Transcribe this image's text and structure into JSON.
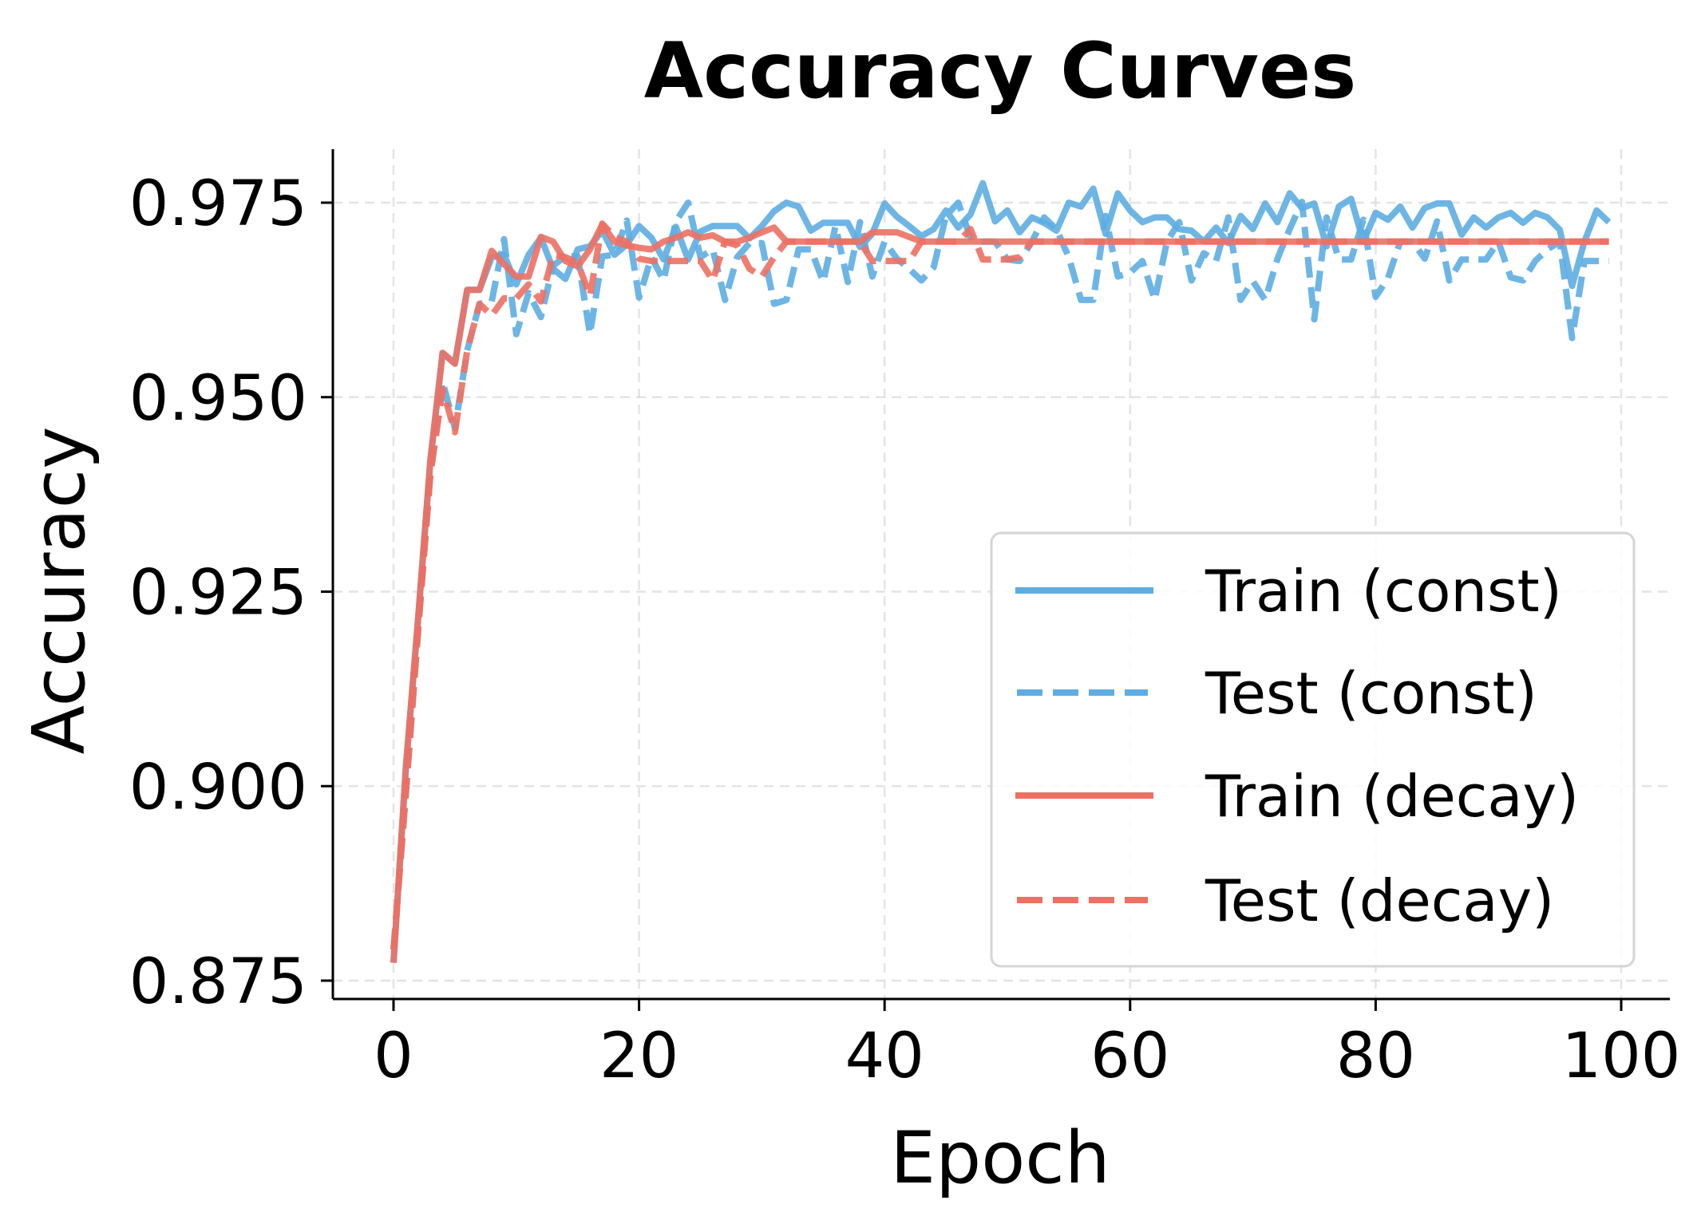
{
  "chart_data": {
    "type": "line",
    "title": "Accuracy Curves",
    "xlabel": "Epoch",
    "ylabel": "Accuracy",
    "xlim": [
      -5,
      104
    ],
    "ylim": [
      0.8705,
      0.982
    ],
    "xticks": [
      0,
      20,
      40,
      60,
      80,
      100
    ],
    "xtick_labels": [
      "0",
      "20",
      "40",
      "60",
      "80",
      "100"
    ],
    "yticks": [
      0.875,
      0.9,
      0.925,
      0.95,
      0.975
    ],
    "ytick_labels": [
      "0.875",
      "0.900",
      "0.925",
      "0.950",
      "0.975"
    ],
    "grid": true,
    "legend_position": "lower right",
    "x": [
      0,
      1,
      2,
      3,
      4,
      5,
      6,
      7,
      8,
      9,
      10,
      11,
      12,
      13,
      14,
      15,
      16,
      17,
      18,
      19,
      20,
      21,
      22,
      23,
      24,
      25,
      26,
      27,
      28,
      29,
      30,
      31,
      32,
      33,
      34,
      35,
      36,
      37,
      38,
      39,
      40,
      41,
      42,
      43,
      44,
      45,
      46,
      47,
      48,
      49,
      50,
      51,
      52,
      53,
      54,
      55,
      56,
      57,
      58,
      59,
      60,
      61,
      62,
      63,
      64,
      65,
      66,
      67,
      68,
      69,
      70,
      71,
      72,
      73,
      74,
      75,
      76,
      77,
      78,
      79,
      80,
      81,
      82,
      83,
      84,
      85,
      86,
      87,
      88,
      89,
      90,
      91,
      92,
      93,
      94,
      95,
      96,
      97,
      98,
      99
    ],
    "series": [
      {
        "name": "Train (const)",
        "color": "#5DADE2",
        "style": "solid",
        "values": [
          0.8773,
          0.9023,
          0.9215,
          0.9418,
          0.9557,
          0.9543,
          0.9638,
          0.9638,
          0.968,
          0.9683,
          0.9645,
          0.9683,
          0.9705,
          0.9665,
          0.9652,
          0.969,
          0.9694,
          0.9714,
          0.9683,
          0.9696,
          0.972,
          0.9705,
          0.9677,
          0.9719,
          0.9677,
          0.9713,
          0.972,
          0.972,
          0.972,
          0.9704,
          0.972,
          0.9739,
          0.975,
          0.9745,
          0.9714,
          0.9724,
          0.9724,
          0.9724,
          0.9693,
          0.971,
          0.9749,
          0.9732,
          0.972,
          0.9707,
          0.9716,
          0.974,
          0.9718,
          0.9735,
          0.9775,
          0.9726,
          0.974,
          0.9712,
          0.9731,
          0.9724,
          0.9714,
          0.975,
          0.9745,
          0.9768,
          0.971,
          0.9762,
          0.974,
          0.9725,
          0.9731,
          0.9731,
          0.9716,
          0.9714,
          0.97,
          0.9718,
          0.9698,
          0.9733,
          0.9716,
          0.9749,
          0.9725,
          0.9762,
          0.9743,
          0.9749,
          0.9694,
          0.9745,
          0.9755,
          0.97,
          0.9737,
          0.9728,
          0.9745,
          0.9718,
          0.9743,
          0.9749,
          0.9749,
          0.9709,
          0.9731,
          0.9718,
          0.9731,
          0.9737,
          0.9724,
          0.9737,
          0.9731,
          0.9715,
          0.9643,
          0.97,
          0.974,
          0.9725
        ]
      },
      {
        "name": "Test (const)",
        "color": "#5DADE2",
        "style": "dashed",
        "values": [
          0.879,
          0.899,
          0.92,
          0.94,
          0.952,
          0.946,
          0.956,
          0.962,
          0.9623,
          0.9703,
          0.9581,
          0.9634,
          0.9603,
          0.9669,
          0.9681,
          0.9681,
          0.9581,
          0.9681,
          0.9683,
          0.9727,
          0.9628,
          0.968,
          0.965,
          0.9726,
          0.975,
          0.968,
          0.969,
          0.9625,
          0.968,
          0.9698,
          0.9698,
          0.962,
          0.9625,
          0.969,
          0.969,
          0.9648,
          0.972,
          0.9648,
          0.9725,
          0.9655,
          0.97,
          0.9678,
          0.9665,
          0.965,
          0.9667,
          0.9733,
          0.975,
          0.9705,
          0.97,
          0.97,
          0.9677,
          0.9675,
          0.97,
          0.9731,
          0.9716,
          0.968,
          0.9625,
          0.9625,
          0.9733,
          0.9655,
          0.966,
          0.9675,
          0.9625,
          0.97,
          0.9725,
          0.965,
          0.9685,
          0.9675,
          0.9731,
          0.9625,
          0.9649,
          0.9625,
          0.9678,
          0.9716,
          0.9751,
          0.96,
          0.9731,
          0.9677,
          0.9677,
          0.9728,
          0.9629,
          0.9653,
          0.97,
          0.97,
          0.9678,
          0.9726,
          0.965,
          0.9677,
          0.9677,
          0.9677,
          0.97,
          0.9654,
          0.965,
          0.9675,
          0.969,
          0.97,
          0.9576,
          0.9675,
          0.9675,
          0.9675
        ]
      },
      {
        "name": "Train (decay)",
        "color": "#EC7063",
        "style": "solid",
        "values": [
          0.8773,
          0.9023,
          0.9215,
          0.9418,
          0.9557,
          0.9543,
          0.9638,
          0.9638,
          0.9688,
          0.9671,
          0.9655,
          0.9655,
          0.9706,
          0.97,
          0.9675,
          0.9668,
          0.969,
          0.9722,
          0.97,
          0.9695,
          0.9692,
          0.969,
          0.97,
          0.9705,
          0.9712,
          0.9705,
          0.9708,
          0.97,
          0.97,
          0.9705,
          0.9712,
          0.9718,
          0.97,
          0.97,
          0.97,
          0.97,
          0.97,
          0.97,
          0.97,
          0.9712,
          0.9712,
          0.9712,
          0.9706,
          0.97,
          0.97,
          0.97,
          0.97,
          0.97,
          0.97,
          0.97,
          0.97,
          0.97,
          0.97,
          0.97,
          0.97,
          0.97,
          0.97,
          0.97,
          0.97,
          0.97,
          0.97,
          0.97,
          0.97,
          0.97,
          0.97,
          0.97,
          0.97,
          0.97,
          0.97,
          0.97,
          0.97,
          0.97,
          0.97,
          0.97,
          0.97,
          0.97,
          0.97,
          0.97,
          0.97,
          0.97,
          0.97,
          0.97,
          0.97,
          0.97,
          0.97,
          0.97,
          0.97,
          0.97,
          0.97,
          0.97,
          0.97,
          0.97,
          0.97,
          0.97,
          0.97,
          0.97,
          0.97,
          0.97,
          0.97,
          0.97
        ]
      },
      {
        "name": "Test (decay)",
        "color": "#EC7063",
        "style": "dashed",
        "values": [
          0.879,
          0.899,
          0.92,
          0.94,
          0.951,
          0.9455,
          0.956,
          0.962,
          0.9605,
          0.9627,
          0.9627,
          0.9645,
          0.9623,
          0.9683,
          0.968,
          0.9673,
          0.963,
          0.9723,
          0.9706,
          0.97,
          0.9678,
          0.9675,
          0.9675,
          0.9675,
          0.9675,
          0.9675,
          0.965,
          0.97,
          0.9695,
          0.9665,
          0.9655,
          0.968,
          0.97,
          0.97,
          0.97,
          0.97,
          0.97,
          0.97,
          0.97,
          0.9675,
          0.9675,
          0.9675,
          0.9675,
          0.97,
          0.97,
          0.97,
          0.97,
          0.9716,
          0.9677,
          0.9677,
          0.9677,
          0.968,
          0.97,
          0.97,
          0.97,
          0.97,
          0.97,
          0.97,
          0.97,
          0.97,
          0.97,
          0.97,
          0.97,
          0.97,
          0.97,
          0.97,
          0.97,
          0.97,
          0.97,
          0.97,
          0.97,
          0.97,
          0.97,
          0.97,
          0.97,
          0.97,
          0.97,
          0.97,
          0.97,
          0.97,
          0.97,
          0.97,
          0.97,
          0.97,
          0.97,
          0.97,
          0.97,
          0.97,
          0.97,
          0.97,
          0.97,
          0.97,
          0.97,
          0.97,
          0.97,
          0.97,
          0.97,
          0.97,
          0.97,
          0.97
        ]
      }
    ]
  },
  "legend": {
    "items": [
      {
        "label": "Train (const)",
        "color": "#5DADE2",
        "style": "solid"
      },
      {
        "label": "Test (const)",
        "color": "#5DADE2",
        "style": "dashed"
      },
      {
        "label": "Train (decay)",
        "color": "#EC7063",
        "style": "solid"
      },
      {
        "label": "Test (decay)",
        "color": "#EC7063",
        "style": "dashed"
      }
    ]
  }
}
